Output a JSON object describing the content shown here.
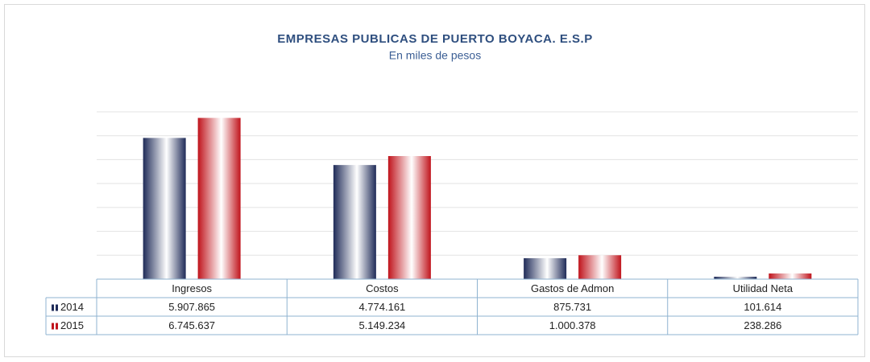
{
  "chart_data": {
    "type": "bar",
    "title": "EMPRESAS PUBLICAS DE PUERTO BOYACA. E.S.P",
    "subtitle": "En miles de pesos",
    "categories": [
      "Ingresos",
      "Costos",
      "Gastos de Admon",
      "Utilidad Neta"
    ],
    "series": [
      {
        "name": "2014",
        "color": "#1f2b58",
        "values": [
          5907865,
          4774161,
          875731,
          101614
        ],
        "value_labels": [
          "5.907.865",
          "4.774.161",
          "875.731",
          "101.614"
        ]
      },
      {
        "name": "2015",
        "color": "#c0141c",
        "values": [
          6745637,
          5149234,
          1000378,
          238286
        ],
        "value_labels": [
          "6.745.637",
          "5.149.234",
          "1.000.378",
          "238.286"
        ]
      }
    ],
    "ylim": [
      0,
      7000000
    ],
    "yticks": [
      0,
      1000000,
      2000000,
      3000000,
      4000000,
      5000000,
      6000000,
      7000000
    ],
    "grid": true
  }
}
